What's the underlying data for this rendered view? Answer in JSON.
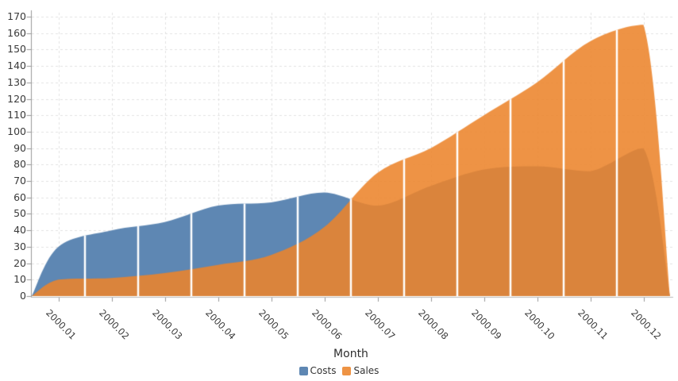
{
  "chart_data": {
    "type": "area",
    "title": "",
    "xlabel": "Month",
    "ylabel": "",
    "categories": [
      "2000.01",
      "2000.02",
      "2000.03",
      "2000.04",
      "2000.05",
      "2000.06",
      "2000.07",
      "2000.08",
      "2000.09",
      "2000.10",
      "2000.11",
      "2000.12"
    ],
    "series": [
      {
        "name": "Costs",
        "color": "#5e87b3",
        "fill_opacity": 1.0,
        "values": [
          30,
          40,
          45,
          55,
          57,
          63,
          55,
          67,
          77,
          79,
          76,
          90
        ]
      },
      {
        "name": "Sales",
        "color": "#ec842b",
        "fill_opacity": 0.88,
        "values": [
          10,
          11,
          14,
          19,
          25,
          42,
          75,
          90,
          110,
          130,
          155,
          165
        ]
      }
    ],
    "ylim": [
      0,
      170
    ],
    "yticks": [
      0,
      10,
      20,
      30,
      40,
      50,
      60,
      70,
      80,
      90,
      100,
      110,
      120,
      130,
      140,
      150,
      160,
      170
    ],
    "grid": true,
    "gridline_color": "#e2e2e2",
    "axis_color": "#999999",
    "category_separator_color": "#ffffff",
    "smooth": true,
    "edge_zero_points": true,
    "legend_position": "bottom"
  }
}
